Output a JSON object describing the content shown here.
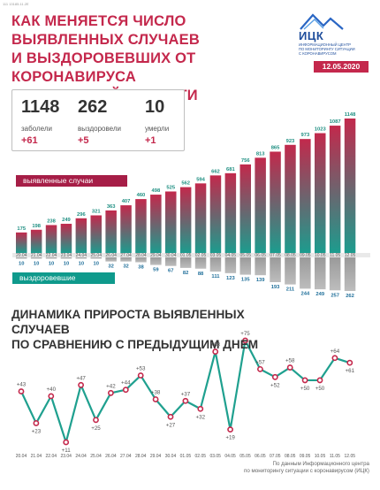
{
  "header": {
    "corner_code": "111 13185.11.2E",
    "title_line1": "КАК МЕНЯЕТСЯ ЧИСЛО ВЫЯВЛЕННЫХ СЛУЧАЕВ",
    "title_line2": "И ВЫЗДОРОВЕВШИХ ОТ КОРОНАВИРУСА",
    "title_line3": "В ОРЛОВСКОЙ ОБЛАСТИ",
    "logo_text": "ИЦК",
    "logo_sub_1": "ИНФОРМАЦИОННЫЙ ЦЕНТР",
    "logo_sub_2": "ПО МОНИТОРИНГУ СИТУАЦИИ",
    "logo_sub_3": "С КОРОНАВИРУСОМ",
    "date": "12.05.2020"
  },
  "colors": {
    "accent": "#c4284c",
    "bar_top": "#c2294c",
    "bar_bottom": "#1c9c8e",
    "teal": "#0f9a8c",
    "line": "#1fa08f",
    "dot": "#c4284c"
  },
  "stats": [
    {
      "value": "1148",
      "label": "заболели",
      "delta": "+61"
    },
    {
      "value": "262",
      "label": "выздоровели",
      "delta": "+5"
    },
    {
      "value": "10",
      "label": "умерли",
      "delta": "+1"
    }
  ],
  "labels": {
    "cases_pill": "выявленные случаи",
    "recovered_pill": "выздоровевшие",
    "line_title_1": "ДИНАМИКА ПРИРОСТА ВЫЯВЛЕННЫХ СЛУЧАЕВ",
    "line_title_2": "ПО СРАВНЕНИЮ С ПРЕДЫДУЩИМ ДНЕМ",
    "footnote_1": "По данным Информационного центра",
    "footnote_2": "по мониторингу ситуации с коронавирусом (ИЦК)"
  },
  "chart_data": [
    {
      "type": "bar",
      "categories": [
        "20.04",
        "21.04",
        "22.04",
        "23.04",
        "24.04",
        "25.04",
        "26.04",
        "27.04",
        "28.04",
        "29.04",
        "30.04",
        "01.05",
        "02.05",
        "03.05",
        "04.05",
        "05.05",
        "06.05",
        "07.05",
        "08.05",
        "09.05",
        "10.05",
        "11.05",
        "12.05"
      ],
      "series": [
        {
          "name": "выявленные случаи",
          "values": [
            175,
            198,
            238,
            249,
            296,
            321,
            363,
            407,
            460,
            498,
            525,
            562,
            594,
            662,
            681,
            756,
            813,
            865,
            923,
            973,
            1023,
            1087,
            1148
          ]
        },
        {
          "name": "выздоровевшие",
          "values": [
            10,
            10,
            10,
            10,
            10,
            10,
            32,
            32,
            38,
            59,
            67,
            82,
            88,
            111,
            123,
            135,
            139,
            193,
            211,
            244,
            249,
            257,
            262
          ]
        }
      ]
    },
    {
      "type": "line",
      "x": [
        "20.04",
        "21.04",
        "22.04",
        "23.04",
        "24.04",
        "25.04",
        "26.04",
        "27.04",
        "28.04",
        "29.04",
        "30.04",
        "01.05",
        "02.05",
        "03.05",
        "04.05",
        "05.05",
        "06.05",
        "07.05",
        "08.05",
        "09.05",
        "10.05",
        "11.05",
        "12.05"
      ],
      "values": [
        43,
        23,
        40,
        11,
        47,
        25,
        42,
        44,
        53,
        38,
        27,
        37,
        32,
        68,
        19,
        75,
        57,
        52,
        58,
        50,
        50,
        64,
        61
      ],
      "labels": [
        "+43",
        "+23",
        "+40",
        "+11",
        "+47",
        "+25",
        "+42",
        "+44",
        "+53",
        "+38",
        "+27",
        "+37",
        "+32",
        "+68",
        "+19",
        "+75",
        "+57",
        "+52",
        "+58",
        "+50",
        "+50",
        "+64",
        "+61"
      ]
    }
  ]
}
